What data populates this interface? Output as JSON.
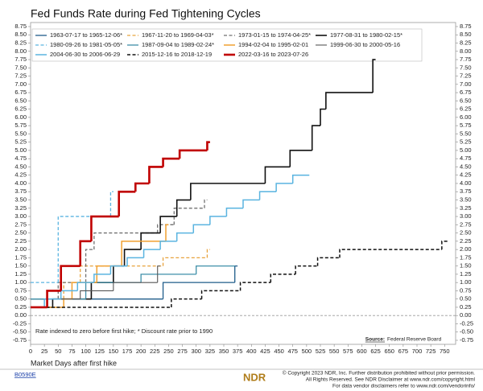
{
  "chart_data": {
    "type": "step-line",
    "title": "Fed Funds Rate during Fed Tightening Cycles",
    "xlabel": "Market Days after first hike",
    "note": "Rate indexed to zero before first hike; * Discount rate prior to 1990",
    "source_label": "Source:",
    "source": "Federal Reserve Board",
    "xlim": [
      0,
      770
    ],
    "xticks": [
      0,
      25,
      50,
      75,
      100,
      125,
      150,
      175,
      200,
      225,
      250,
      275,
      300,
      325,
      350,
      375,
      400,
      425,
      450,
      475,
      500,
      525,
      550,
      575,
      600,
      625,
      650,
      675,
      700,
      725,
      750
    ],
    "ylim": [
      -0.75,
      8.75
    ],
    "yticks": [
      -0.75,
      {
        "value": -0.5,
        "label": "-0.50"
      },
      -0.25,
      {
        "value": 0,
        "label": "0.00"
      },
      0.25,
      {
        "value": 0.5,
        "label": "0.50"
      },
      0.75,
      {
        "value": 1,
        "label": "1.00"
      },
      1.25,
      {
        "value": 1.5,
        "label": "1.50"
      },
      1.75,
      {
        "value": 2,
        "label": "2.00"
      },
      2.25,
      {
        "value": 2.5,
        "label": "2.50"
      },
      2.75,
      {
        "value": 3,
        "label": "3.00"
      },
      3.25,
      {
        "value": 3.5,
        "label": "3.50"
      },
      3.75,
      {
        "value": 4,
        "label": "4.00"
      },
      4.25,
      {
        "value": 4.5,
        "label": "4.50"
      },
      4.75,
      {
        "value": 5,
        "label": "5.00"
      },
      5.25,
      {
        "value": 5.5,
        "label": "5.50"
      },
      5.75,
      {
        "value": 6,
        "label": "6.00"
      },
      6.25,
      {
        "value": 6.5,
        "label": "6.50"
      },
      6.75,
      {
        "value": 7,
        "label": "7.00"
      },
      7.25,
      {
        "value": 7.5,
        "label": "7.50"
      },
      7.75,
      {
        "value": 8,
        "label": "8.00"
      },
      8.25,
      {
        "value": 8.5,
        "label": "8.50"
      },
      8.75
    ],
    "zero_line": true,
    "series": [
      {
        "name": "1963-07-17 to 1965-12-06*",
        "color": "#1f5c8a",
        "dash": false,
        "width": 1.3,
        "x": [
          0,
          240,
          370,
          375
        ],
        "values": [
          0.5,
          1.0,
          1.5,
          1.5
        ]
      },
      {
        "name": "1967-11-20 to 1969-04-03*",
        "color": "#e8a33d",
        "dash": true,
        "width": 1.3,
        "x": [
          0,
          60,
          90,
          240,
          320,
          325
        ],
        "values": [
          0.5,
          1.0,
          1.5,
          1.75,
          2.0,
          2.0
        ]
      },
      {
        "name": "1973-01-15 to 1974-04-25*",
        "color": "#707070",
        "dash": true,
        "width": 1.3,
        "x": [
          0,
          50,
          100,
          115,
          230,
          260,
          315,
          320
        ],
        "values": [
          0.5,
          1.0,
          2.0,
          2.5,
          2.75,
          3.25,
          3.5,
          3.5
        ]
      },
      {
        "name": "1977-08-31 to 1980-02-15*",
        "color": "#111111",
        "dash": false,
        "width": 1.6,
        "x": [
          0,
          40,
          110,
          150,
          170,
          200,
          235,
          265,
          290,
          425,
          470,
          510,
          525,
          535,
          620,
          625
        ],
        "values": [
          0.25,
          0.5,
          1.0,
          1.5,
          2.0,
          2.5,
          3.0,
          3.5,
          4.0,
          4.5,
          5.0,
          5.75,
          6.25,
          6.75,
          7.75,
          7.75
        ]
      },
      {
        "name": "1980-09-26 to 1981-05-05*",
        "color": "#5ab4e0",
        "dash": true,
        "width": 1.3,
        "x": [
          0,
          50,
          145,
          150
        ],
        "values": [
          1.0,
          3.0,
          3.75,
          3.75
        ]
      },
      {
        "name": "1987-09-04 to 1989-02-24*",
        "color": "#3e8fa8",
        "dash": false,
        "width": 1.3,
        "x": [
          0,
          100,
          200,
          300,
          370
        ],
        "values": [
          0.5,
          1.0,
          1.25,
          1.5,
          1.5
        ]
      },
      {
        "name": "1994-02-04 to 1995-02-01",
        "color": "#f0a030",
        "dash": false,
        "width": 1.5,
        "x": [
          0,
          60,
          75,
          120,
          165,
          245,
          250
        ],
        "values": [
          0.25,
          0.5,
          1.0,
          1.5,
          2.25,
          2.75,
          2.75
        ]
      },
      {
        "name": "1999-06-30 to 2000-05-16",
        "color": "#555555",
        "dash": false,
        "width": 1.1,
        "x": [
          0,
          30,
          90,
          150,
          230,
          235
        ],
        "values": [
          0.25,
          0.5,
          0.75,
          1.0,
          1.5,
          1.5
        ]
      },
      {
        "name": "2004-06-30 to 2006-06-29",
        "color": "#5ab4e0",
        "dash": false,
        "width": 1.5,
        "x": [
          0,
          25,
          55,
          85,
          115,
          145,
          175,
          205,
          235,
          265,
          295,
          325,
          355,
          385,
          415,
          445,
          475,
          505
        ],
        "values": [
          0.25,
          0.5,
          0.75,
          1,
          1.25,
          1.5,
          1.75,
          2,
          2.25,
          2.5,
          2.75,
          3,
          3.25,
          3.5,
          3.75,
          4,
          4.25,
          4.25
        ]
      },
      {
        "name": "2015-12-16 to 2018-12-19",
        "color": "#111111",
        "dash": true,
        "width": 1.5,
        "x": [
          0,
          255,
          310,
          380,
          435,
          480,
          520,
          560,
          745,
          755
        ],
        "values": [
          0.25,
          0.5,
          0.75,
          1.0,
          1.25,
          1.5,
          1.75,
          2.0,
          2.25,
          2.25
        ]
      },
      {
        "name": "2022-03-16 to 2023-07-26",
        "color": "#c00000",
        "dash": false,
        "width": 2.6,
        "x": [
          0,
          30,
          55,
          90,
          110,
          160,
          190,
          215,
          240,
          270,
          320,
          325
        ],
        "values": [
          0.25,
          0.75,
          1.5,
          2.25,
          3.0,
          3.75,
          4.0,
          4.5,
          4.75,
          5.0,
          5.25,
          5.25
        ]
      }
    ]
  },
  "footer": {
    "code": "B0590E",
    "logo": "NDR",
    "lines": [
      "© Copyright 2023 NDR, Inc. Further distribution prohibited without prior permission.",
      "All Rights Reserved. See NDR Disclaimer at www.ndr.com/copyright.html",
      "For data vendor disclaimers refer to www.ndr.com/vendorinfo/"
    ]
  }
}
